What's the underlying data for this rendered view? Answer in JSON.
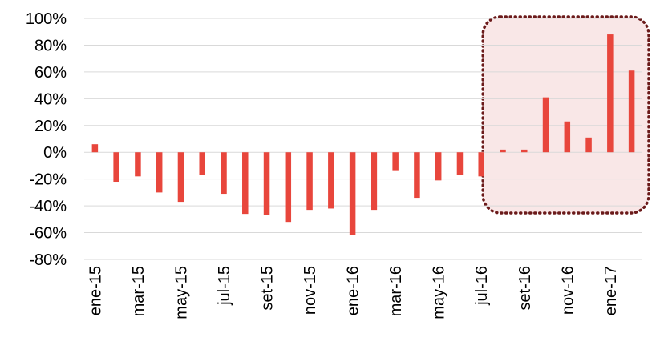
{
  "chart_data": {
    "type": "bar",
    "categories": [
      "ene-15",
      "feb-15",
      "mar-15",
      "abr-15",
      "may-15",
      "jun-15",
      "jul-15",
      "ago-15",
      "set-15",
      "oct-15",
      "nov-15",
      "dic-15",
      "ene-16",
      "feb-16",
      "mar-16",
      "abr-16",
      "may-16",
      "jun-16",
      "jul-16",
      "ago-16",
      "set-16",
      "oct-16",
      "nov-16",
      "dic-16",
      "ene-17",
      "feb-17"
    ],
    "x_tick_labels": [
      "ene-15",
      "mar-15",
      "may-15",
      "jul-15",
      "set-15",
      "nov-15",
      "ene-16",
      "mar-16",
      "may-16",
      "jul-16",
      "set-16",
      "nov-16",
      "ene-17"
    ],
    "values": [
      6,
      -22,
      -18,
      -30,
      -37,
      -17,
      -31,
      -46,
      -47,
      -52,
      -43,
      -42,
      -62,
      -43,
      -14,
      -34,
      -21,
      -17,
      -18,
      2,
      2,
      41,
      23,
      11,
      88,
      61
    ],
    "value_unit": "%",
    "ylim": [
      -80,
      100
    ],
    "y_ticks": [
      -80,
      -60,
      -40,
      -20,
      0,
      20,
      40,
      60,
      80,
      100
    ],
    "y_tick_labels": [
      "-80%",
      "-60%",
      "-40%",
      "-20%",
      "0%",
      "20%",
      "40%",
      "60%",
      "80%",
      "100%"
    ],
    "grid": true,
    "highlight_range": [
      "jul-16",
      "feb-17"
    ],
    "colors": {
      "bar": "#e8463c",
      "grid": "#d9d9d9",
      "highlight_border": "#6b1a1a",
      "highlight_fill": "#f9e7e7"
    }
  }
}
